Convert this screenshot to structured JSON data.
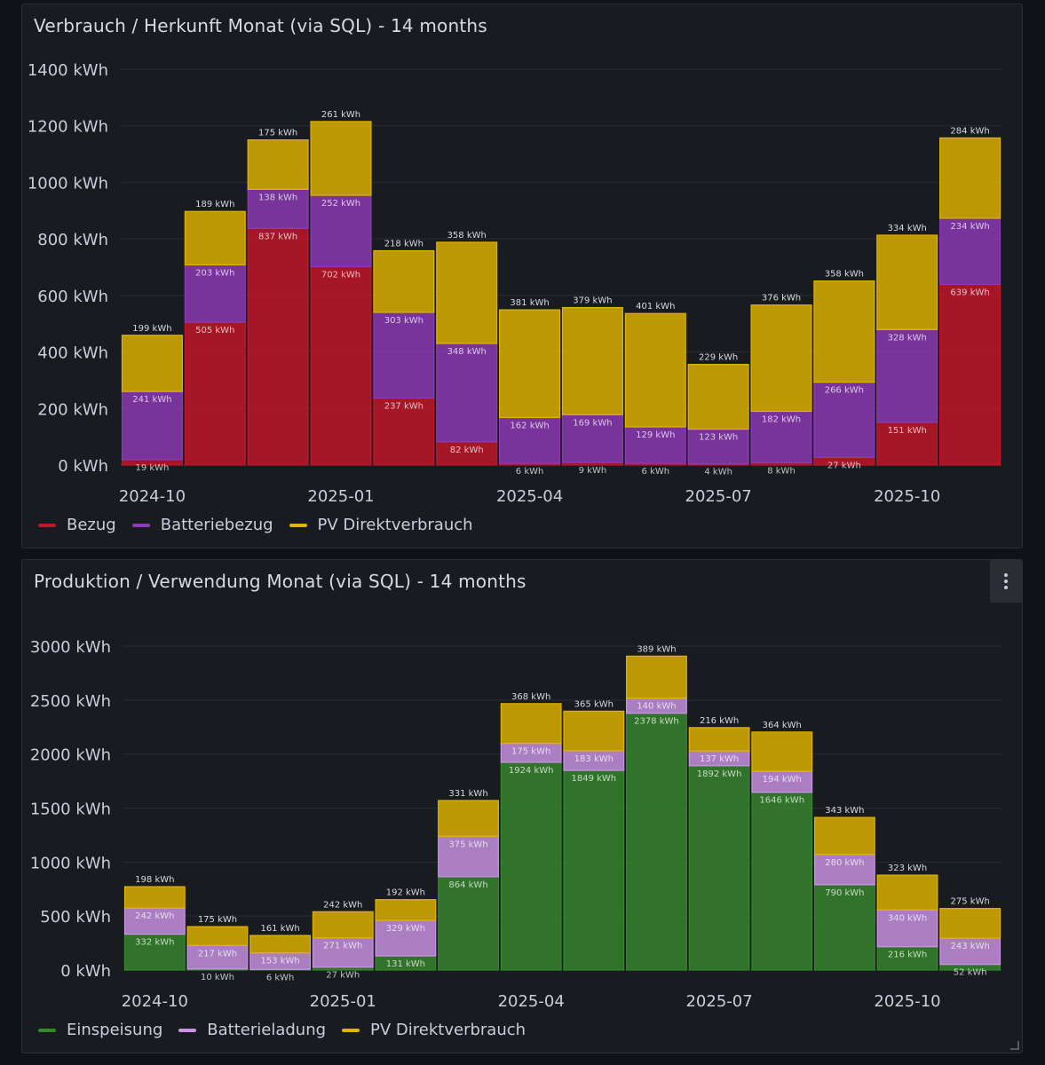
{
  "panels": [
    {
      "title": "Verbrauch / Herkunft Monat (via SQL) - 14 months",
      "legend": [
        {
          "label": "Bezug",
          "color": "#c4162a"
        },
        {
          "label": "Batteriebezug",
          "color": "#8f3bb8"
        },
        {
          "label": "PV Direktverbrauch",
          "color": "#e0b400"
        }
      ]
    },
    {
      "title": "Produktion / Verwendung Monat (via SQL) - 14 months",
      "legend": [
        {
          "label": "Einspeisung",
          "color": "#37872d"
        },
        {
          "label": "Batterieladung",
          "color": "#ca95e5"
        },
        {
          "label": "PV Direktverbrauch",
          "color": "#e0b400"
        }
      ]
    }
  ],
  "chart_data": [
    {
      "type": "bar",
      "stacked": true,
      "title": "Verbrauch / Herkunft Monat (via SQL) - 14 months",
      "unit": "kWh",
      "ylim": [
        0,
        1400
      ],
      "yticks": [
        0,
        200,
        400,
        600,
        800,
        1000,
        1200,
        1400
      ],
      "ytick_labels": [
        "0 kWh",
        "200 kWh",
        "400 kWh",
        "600 kWh",
        "800 kWh",
        "1000 kWh",
        "1200 kWh",
        "1400 kWh"
      ],
      "categories": [
        "2024-10",
        "2024-11",
        "2024-12",
        "2025-01",
        "2025-02",
        "2025-03",
        "2025-04",
        "2025-05",
        "2025-06",
        "2025-07",
        "2025-08",
        "2025-09",
        "2025-10",
        "2025-11"
      ],
      "xtick_labels": [
        {
          "index": 0,
          "label": "2024-10"
        },
        {
          "index": 3,
          "label": "2025-01"
        },
        {
          "index": 6,
          "label": "2025-04"
        },
        {
          "index": 9,
          "label": "2025-07"
        },
        {
          "index": 12,
          "label": "2025-10"
        }
      ],
      "legend_position": "bottom-left",
      "grid": true,
      "series": [
        {
          "name": "Bezug",
          "color": "#c4162a",
          "values": [
            19,
            505,
            837,
            702,
            237,
            82,
            6,
            9,
            6,
            4,
            8,
            27,
            151,
            639
          ],
          "labels": [
            "19 kWh",
            "505 kWh",
            "837 kWh",
            "702 kWh",
            "237 kWh",
            "82 kWh",
            "6 kWh",
            "9 kWh",
            "6 kWh",
            "4 kWh",
            "8 kWh",
            "27 kWh",
            "151 kWh",
            "639 kWh"
          ]
        },
        {
          "name": "Batteriebezug",
          "color": "#8f3bb8",
          "values": [
            241,
            203,
            138,
            252,
            303,
            348,
            162,
            169,
            129,
            123,
            182,
            266,
            328,
            234
          ],
          "labels": [
            "241 kWh",
            "203 kWh",
            "138 kWh",
            "252 kWh",
            "303 kWh",
            "348 kWh",
            "162 kWh",
            "169 kWh",
            "129 kWh",
            "123 kWh",
            "182 kWh",
            "266 kWh",
            "328 kWh",
            "234 kWh"
          ]
        },
        {
          "name": "PV Direktverbrauch",
          "color": "#e0b400",
          "values": [
            199,
            189,
            175,
            261,
            218,
            358,
            381,
            379,
            401,
            229,
            376,
            358,
            334,
            284
          ],
          "labels": [
            "199 kWh",
            "189 kWh",
            "175 kWh",
            "261 kWh",
            "218 kWh",
            "358 kWh",
            "381 kWh",
            "379 kWh",
            "401 kWh",
            "229 kWh",
            "376 kWh",
            "358 kWh",
            "334 kWh",
            "284 kWh"
          ]
        }
      ]
    },
    {
      "type": "bar",
      "stacked": true,
      "title": "Produktion / Verwendung Monat (via SQL) - 14 months",
      "unit": "kWh",
      "ylim": [
        0,
        3000
      ],
      "yticks": [
        0,
        500,
        1000,
        1500,
        2000,
        2500,
        3000
      ],
      "ytick_labels": [
        "0 kWh",
        "500 kWh",
        "1000 kWh",
        "1500 kWh",
        "2000 kWh",
        "2500 kWh",
        "3000 kWh"
      ],
      "categories": [
        "2024-10",
        "2024-11",
        "2024-12",
        "2025-01",
        "2025-02",
        "2025-03",
        "2025-04",
        "2025-05",
        "2025-06",
        "2025-07",
        "2025-08",
        "2025-09",
        "2025-10",
        "2025-11"
      ],
      "xtick_labels": [
        {
          "index": 0,
          "label": "2024-10"
        },
        {
          "index": 3,
          "label": "2025-01"
        },
        {
          "index": 6,
          "label": "2025-04"
        },
        {
          "index": 9,
          "label": "2025-07"
        },
        {
          "index": 12,
          "label": "2025-10"
        }
      ],
      "legend_position": "bottom-left",
      "grid": true,
      "series": [
        {
          "name": "Einspeisung",
          "color": "#37872d",
          "values": [
            332,
            10,
            6,
            27,
            131,
            864,
            1924,
            1849,
            2378,
            1892,
            1646,
            790,
            216,
            52
          ],
          "labels": [
            "332 kWh",
            "10 kWh",
            "6 kWh",
            "27 kWh",
            "131 kWh",
            "864 kWh",
            "1924 kWh",
            "1849 kWh",
            "2378 kWh",
            "1892 kWh",
            "1646 kWh",
            "790 kWh",
            "216 kWh",
            "52 kWh"
          ]
        },
        {
          "name": "Batterieladung",
          "color": "#ca95e5",
          "values": [
            242,
            217,
            153,
            271,
            329,
            375,
            175,
            183,
            140,
            137,
            194,
            280,
            340,
            243
          ],
          "labels": [
            "242 kWh",
            "217 kWh",
            "153 kWh",
            "271 kWh",
            "329 kWh",
            "375 kWh",
            "175 kWh",
            "183 kWh",
            "140 kWh",
            "137 kWh",
            "194 kWh",
            "280 kWh",
            "340 kWh",
            "243 kWh"
          ]
        },
        {
          "name": "PV Direktverbrauch",
          "color": "#e0b400",
          "values": [
            198,
            175,
            161,
            242,
            192,
            331,
            368,
            365,
            389,
            216,
            364,
            343,
            323,
            275
          ],
          "labels": [
            "198 kWh",
            "175 kWh",
            "161 kWh",
            "242 kWh",
            "192 kWh",
            "331 kWh",
            "368 kWh",
            "365 kWh",
            "389 kWh",
            "216 kWh",
            "364 kWh",
            "343 kWh",
            "323 kWh",
            "275 kWh"
          ]
        }
      ]
    }
  ]
}
